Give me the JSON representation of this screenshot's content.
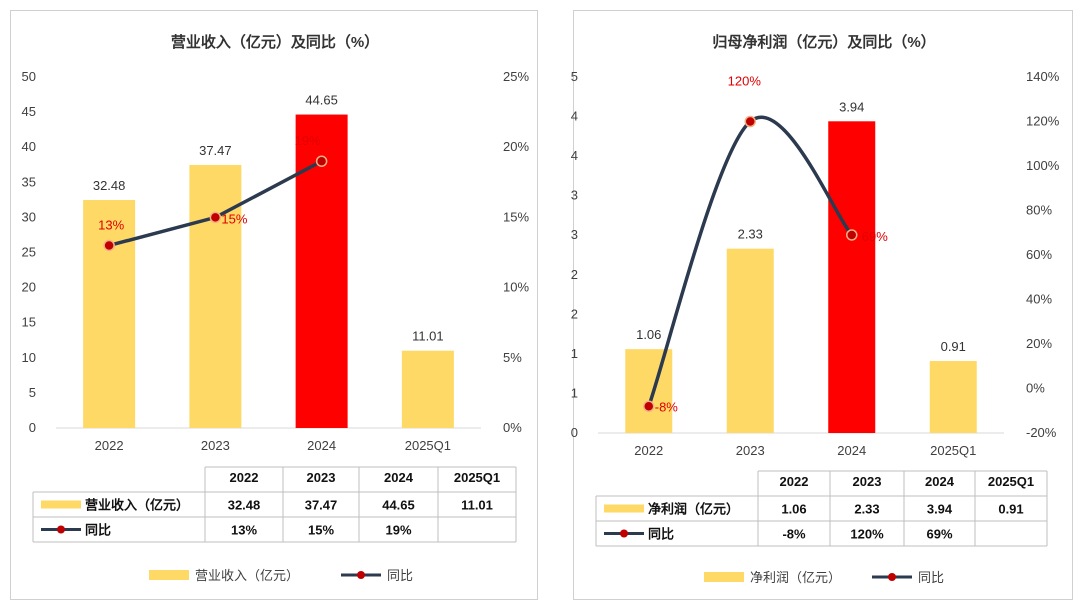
{
  "chart_data": [
    {
      "type": "bar",
      "title": "营业收入（亿元）及同比（%）",
      "categories": [
        "2022",
        "2023",
        "2024",
        "2025Q1"
      ],
      "y_ticks": [
        "0",
        "5",
        "10",
        "15",
        "20",
        "25",
        "30",
        "35",
        "40",
        "45",
        "50"
      ],
      "y2_ticks": [
        "0%",
        "5%",
        "10%",
        "15%",
        "20%",
        "25%"
      ],
      "ylim": [
        0,
        50
      ],
      "y2lim": [
        0,
        25
      ],
      "series": [
        {
          "name": "营业收入（亿元）",
          "kind": "bar",
          "values": [
            32.48,
            37.47,
            44.65,
            11.01
          ],
          "labels": [
            "32.48",
            "37.47",
            "44.65",
            "11.01"
          ],
          "colors": [
            "#FFD966",
            "#FFD966",
            "#FF0000",
            "#FFD966"
          ]
        },
        {
          "name": "同比",
          "kind": "line",
          "axis": "secondary",
          "values": [
            13,
            15,
            19,
            null
          ],
          "labels": [
            "13%",
            "15%",
            "19%",
            ""
          ]
        }
      ],
      "table": {
        "header": [
          "2022",
          "2023",
          "2024",
          "2025Q1"
        ],
        "rows": [
          {
            "name": "营业收入（亿元）",
            "cells": [
              "32.48",
              "37.47",
              "44.65",
              "11.01"
            ]
          },
          {
            "name": "同比",
            "cells": [
              "13%",
              "15%",
              "19%",
              ""
            ]
          }
        ]
      },
      "legend": [
        "营业收入（亿元）",
        "同比"
      ],
      "legend_position": "bottom",
      "grid": false
    },
    {
      "type": "bar",
      "title": "归母净利润（亿元）及同比（%）",
      "categories": [
        "2022",
        "2023",
        "2024",
        "2025Q1"
      ],
      "y_ticks": [
        "0",
        "1",
        "1",
        "2",
        "2",
        "3",
        "3",
        "4",
        "4",
        "5"
      ],
      "y2_ticks": [
        "-20%",
        "0%",
        "20%",
        "40%",
        "60%",
        "80%",
        "100%",
        "120%",
        "140%"
      ],
      "ylim": [
        0,
        4.5
      ],
      "y2lim": [
        -20,
        140
      ],
      "series": [
        {
          "name": "净利润（亿元）",
          "kind": "bar",
          "values": [
            1.06,
            2.33,
            3.94,
            0.91
          ],
          "labels": [
            "1.06",
            "2.33",
            "3.94",
            "0.91"
          ],
          "colors": [
            "#FFD966",
            "#FFD966",
            "#FF0000",
            "#FFD966"
          ]
        },
        {
          "name": "同比",
          "kind": "line",
          "axis": "secondary",
          "values": [
            -8,
            120,
            69,
            null
          ],
          "labels": [
            "-8%",
            "120%",
            "69%",
            ""
          ]
        }
      ],
      "table": {
        "header": [
          "2022",
          "2023",
          "2024",
          "2025Q1"
        ],
        "rows": [
          {
            "name": "净利润（亿元）",
            "cells": [
              "1.06",
              "2.33",
              "3.94",
              "0.91"
            ]
          },
          {
            "name": "同比",
            "cells": [
              "-8%",
              "120%",
              "69%",
              ""
            ]
          }
        ]
      },
      "legend": [
        "净利润（亿元）",
        "同比"
      ],
      "legend_position": "bottom",
      "grid": false
    }
  ],
  "colors": {
    "bar": "#FFD966",
    "highlight": "#FF0000",
    "line": "#2B3A4F",
    "marker": "#C00000",
    "point_label": "#E00000"
  }
}
